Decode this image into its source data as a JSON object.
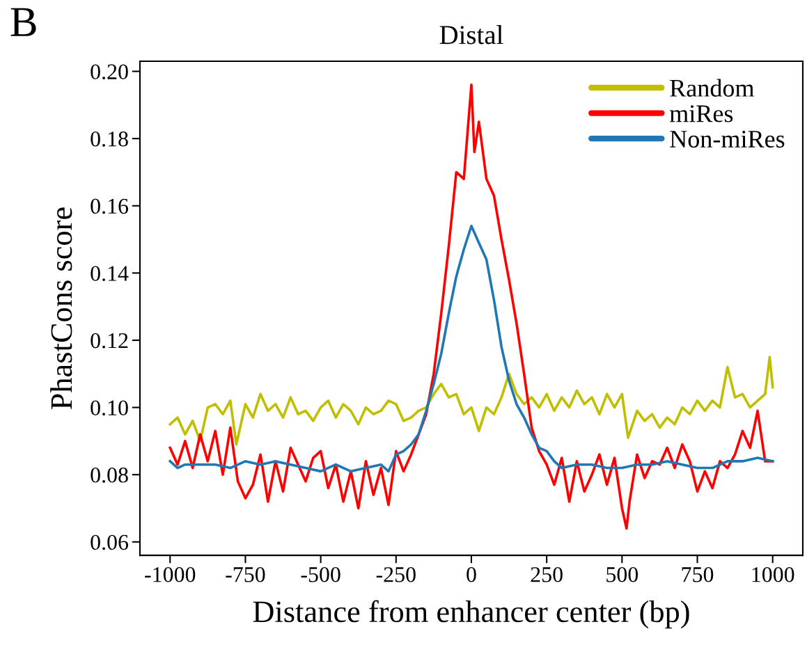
{
  "chart_data": {
    "type": "line",
    "title": "Distal",
    "xlabel": "Distance from enhancer center (bp)",
    "ylabel": "PhastCons score",
    "annotations": [
      "B"
    ],
    "xlim": [
      -1100,
      1100
    ],
    "ylim": [
      0.056,
      0.203
    ],
    "xticks": [
      -1000,
      -750,
      -500,
      -250,
      0,
      250,
      500,
      750,
      1000
    ],
    "yticks": [
      {
        "value": 0.06,
        "label": "0.06"
      },
      {
        "value": 0.08,
        "label": "0.08"
      },
      {
        "value": 0.1,
        "label": "0.10"
      },
      {
        "value": 0.12,
        "label": "0.12"
      },
      {
        "value": 0.14,
        "label": "0.14"
      },
      {
        "value": 0.16,
        "label": "0.16"
      },
      {
        "value": 0.18,
        "label": "0.18"
      },
      {
        "value": 0.2,
        "label": "0.20"
      }
    ],
    "grid": false,
    "legend": "top right",
    "marker": "none",
    "line_style": "solid",
    "series": [
      {
        "name": "Random",
        "color": "#bfbf00",
        "x": [
          -1000,
          -975,
          -950,
          -925,
          -900,
          -875,
          -850,
          -825,
          -800,
          -780,
          -750,
          -725,
          -700,
          -675,
          -650,
          -625,
          -600,
          -575,
          -550,
          -525,
          -500,
          -475,
          -450,
          -425,
          -400,
          -375,
          -350,
          -325,
          -300,
          -275,
          -250,
          -225,
          -200,
          -175,
          -150,
          -125,
          -100,
          -75,
          -50,
          -25,
          0,
          25,
          50,
          75,
          100,
          125,
          150,
          175,
          200,
          225,
          250,
          275,
          300,
          325,
          350,
          375,
          400,
          425,
          450,
          475,
          500,
          520,
          550,
          575,
          600,
          625,
          650,
          675,
          700,
          725,
          750,
          775,
          800,
          825,
          850,
          875,
          900,
          925,
          950,
          975,
          990,
          1000
        ],
        "values": [
          0.095,
          0.097,
          0.092,
          0.096,
          0.09,
          0.1,
          0.101,
          0.098,
          0.102,
          0.089,
          0.101,
          0.097,
          0.104,
          0.099,
          0.101,
          0.097,
          0.103,
          0.098,
          0.099,
          0.096,
          0.1,
          0.102,
          0.097,
          0.101,
          0.099,
          0.095,
          0.1,
          0.098,
          0.099,
          0.102,
          0.101,
          0.096,
          0.097,
          0.099,
          0.1,
          0.104,
          0.107,
          0.103,
          0.104,
          0.098,
          0.1,
          0.093,
          0.1,
          0.098,
          0.103,
          0.11,
          0.104,
          0.101,
          0.103,
          0.1,
          0.104,
          0.099,
          0.103,
          0.1,
          0.105,
          0.101,
          0.103,
          0.098,
          0.104,
          0.1,
          0.104,
          0.091,
          0.099,
          0.096,
          0.098,
          0.094,
          0.097,
          0.095,
          0.1,
          0.098,
          0.102,
          0.099,
          0.102,
          0.1,
          0.112,
          0.103,
          0.104,
          0.1,
          0.102,
          0.104,
          0.115,
          0.106
        ]
      },
      {
        "name": "miRes",
        "color": "#ff0000",
        "x": [
          -1000,
          -975,
          -950,
          -925,
          -900,
          -875,
          -850,
          -825,
          -800,
          -775,
          -750,
          -725,
          -700,
          -675,
          -650,
          -625,
          -600,
          -575,
          -550,
          -525,
          -500,
          -475,
          -450,
          -425,
          -400,
          -375,
          -350,
          -325,
          -300,
          -275,
          -250,
          -225,
          -200,
          -175,
          -150,
          -125,
          -100,
          -75,
          -50,
          -25,
          0,
          10,
          25,
          50,
          75,
          100,
          125,
          150,
          175,
          200,
          225,
          250,
          275,
          300,
          325,
          350,
          375,
          400,
          425,
          450,
          475,
          500,
          515,
          525,
          550,
          575,
          600,
          625,
          650,
          675,
          700,
          725,
          750,
          775,
          800,
          825,
          850,
          875,
          900,
          925,
          950,
          975,
          1000
        ],
        "values": [
          0.088,
          0.083,
          0.09,
          0.082,
          0.092,
          0.084,
          0.093,
          0.08,
          0.094,
          0.078,
          0.073,
          0.077,
          0.086,
          0.072,
          0.084,
          0.075,
          0.088,
          0.083,
          0.078,
          0.085,
          0.087,
          0.076,
          0.083,
          0.072,
          0.081,
          0.07,
          0.084,
          0.074,
          0.082,
          0.071,
          0.087,
          0.081,
          0.086,
          0.092,
          0.098,
          0.11,
          0.128,
          0.148,
          0.17,
          0.168,
          0.196,
          0.176,
          0.185,
          0.168,
          0.163,
          0.15,
          0.138,
          0.125,
          0.11,
          0.094,
          0.087,
          0.083,
          0.077,
          0.085,
          0.072,
          0.084,
          0.075,
          0.08,
          0.086,
          0.077,
          0.085,
          0.07,
          0.064,
          0.072,
          0.086,
          0.079,
          0.084,
          0.083,
          0.088,
          0.082,
          0.089,
          0.084,
          0.075,
          0.081,
          0.076,
          0.084,
          0.082,
          0.086,
          0.093,
          0.088,
          0.099,
          0.084,
          0.084
        ]
      },
      {
        "name": "Non-miRes",
        "color": "#1f77b4",
        "x": [
          -1000,
          -975,
          -950,
          -900,
          -850,
          -800,
          -750,
          -700,
          -650,
          -600,
          -550,
          -500,
          -450,
          -400,
          -350,
          -300,
          -275,
          -250,
          -225,
          -200,
          -175,
          -150,
          -125,
          -100,
          -75,
          -50,
          -25,
          0,
          25,
          50,
          75,
          100,
          125,
          150,
          175,
          200,
          225,
          250,
          275,
          300,
          350,
          400,
          450,
          500,
          550,
          600,
          650,
          700,
          750,
          800,
          850,
          900,
          950,
          1000
        ],
        "values": [
          0.084,
          0.082,
          0.083,
          0.083,
          0.083,
          0.082,
          0.084,
          0.083,
          0.084,
          0.083,
          0.082,
          0.081,
          0.083,
          0.081,
          0.082,
          0.083,
          0.081,
          0.086,
          0.087,
          0.089,
          0.092,
          0.099,
          0.107,
          0.116,
          0.128,
          0.139,
          0.147,
          0.154,
          0.149,
          0.144,
          0.132,
          0.118,
          0.108,
          0.101,
          0.097,
          0.092,
          0.088,
          0.087,
          0.084,
          0.082,
          0.083,
          0.083,
          0.082,
          0.082,
          0.083,
          0.083,
          0.084,
          0.083,
          0.082,
          0.082,
          0.084,
          0.084,
          0.085,
          0.084
        ]
      }
    ]
  }
}
